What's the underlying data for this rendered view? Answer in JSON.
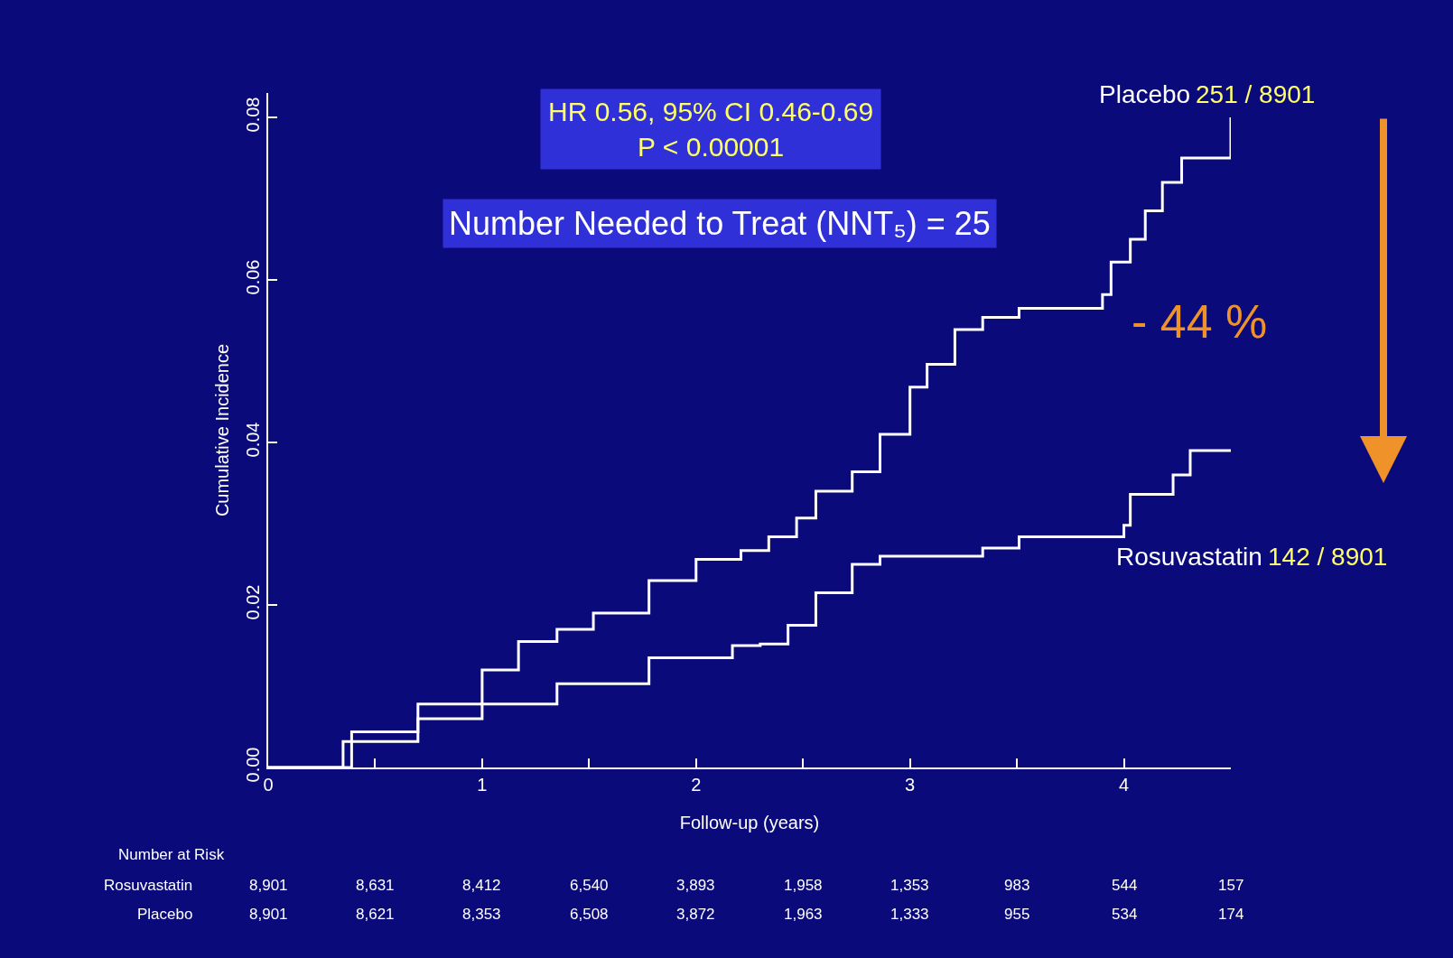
{
  "chart_data": {
    "type": "step",
    "xlabel": "Follow-up (years)",
    "ylabel": "Cumulative Incidence",
    "xlim": [
      0,
      4.5
    ],
    "ylim": [
      0,
      0.083
    ],
    "xticks": [
      0,
      {
        "value": 0.5,
        "label": null
      },
      1,
      {
        "value": 1.5,
        "label": null
      },
      2,
      {
        "value": 2.5,
        "label": null
      },
      3,
      {
        "value": 3.5,
        "label": null
      },
      4
    ],
    "yticks": [
      {
        "value": 0,
        "label": "0.00"
      },
      {
        "value": 0.02,
        "label": "0.02"
      },
      {
        "value": 0.04,
        "label": "0.04"
      },
      {
        "value": 0.06,
        "label": "0.06"
      },
      {
        "value": 0.08,
        "label": "0.08"
      }
    ],
    "grid": false,
    "legend": false,
    "tick_labels": "xy",
    "line_style": "solid",
    "series": [
      {
        "name": "Placebo",
        "color": "#ffffff",
        "x": [
          0,
          0.39,
          0.7,
          1.0,
          1.17,
          1.35,
          1.52,
          1.78,
          2.0,
          2.21,
          2.34,
          2.47,
          2.56,
          2.73,
          2.86,
          3.0,
          3.08,
          3.21,
          3.34,
          3.51,
          3.79,
          3.9,
          3.94,
          4.03,
          4.1,
          4.18,
          4.27,
          4.46,
          4.5
        ],
        "values": [
          0,
          0.0044,
          0.0078,
          0.012,
          0.0155,
          0.017,
          0.019,
          0.023,
          0.0256,
          0.0267,
          0.0284,
          0.0307,
          0.034,
          0.0364,
          0.041,
          0.0468,
          0.0496,
          0.0539,
          0.0554,
          0.0565,
          0.0565,
          0.0582,
          0.0622,
          0.065,
          0.0685,
          0.072,
          0.075,
          0.075,
          0.08
        ]
      },
      {
        "name": "Rosuvastatin",
        "color": "#ffffff",
        "x": [
          0,
          0.35,
          0.7,
          1.0,
          1.35,
          1.78,
          2.17,
          2.3,
          2.43,
          2.56,
          2.73,
          2.86,
          3.34,
          3.51,
          4.0,
          4.03,
          4.23,
          4.31,
          4.5
        ],
        "values": [
          0,
          0.0032,
          0.006,
          0.0078,
          0.0103,
          0.0135,
          0.015,
          0.0152,
          0.0175,
          0.0215,
          0.025,
          0.026,
          0.027,
          0.0284,
          0.0298,
          0.0336,
          0.036,
          0.039,
          0.039
        ]
      }
    ],
    "annotations": [
      "HR 0.56, 95% CI 0.46-0.69\nP < 0.00001",
      "Number Needed to Treat (NNT₅) = 25",
      "251 / 8901",
      "142 / 8901",
      "- 44 %",
      "Number at Risk",
      "Rosuvastatin",
      "8,901",
      "8,631",
      "8,412",
      "6,540",
      "3,893",
      "1,958",
      "1,353",
      "983",
      "544",
      "157",
      "Placebo",
      "8,901",
      "8,621",
      "8,353",
      "6,508",
      "3,872",
      "1,963",
      "1,333",
      "955",
      "534",
      "174"
    ]
  }
}
